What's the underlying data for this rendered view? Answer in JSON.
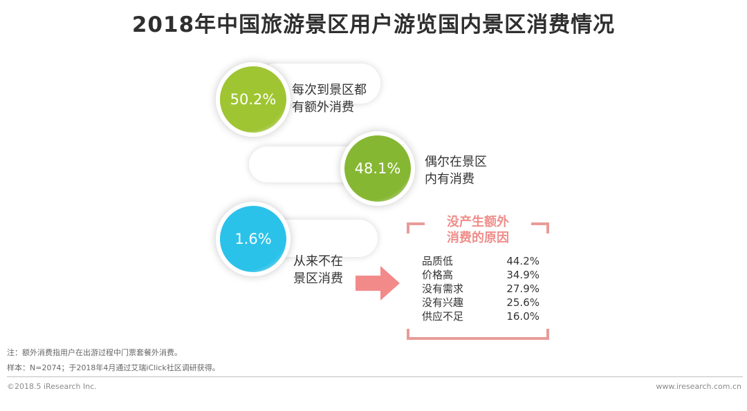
{
  "title": "2018年中国旅游景区用户游览国内景区消费情况",
  "chart_data": {
    "type": "bubble-infographic",
    "series": [
      {
        "value_label": "50.2%",
        "value": 50.2,
        "label_line1": "每次到景区都",
        "label_line2": "有额外消费",
        "color": "#9fc532"
      },
      {
        "value_label": "48.1%",
        "value": 48.1,
        "label_line1": "偶尔在景区",
        "label_line2": "内有消费",
        "color": "#86b733"
      },
      {
        "value_label": "1.6%",
        "value": 1.6,
        "label_line1": "从来不在",
        "label_line2": "景区消费",
        "color": "#2bc2ea"
      }
    ],
    "reasons": {
      "title_line1": "没产生额外",
      "title_line2": "消费的原因",
      "items": [
        {
          "label": "品质低",
          "value_label": "44.2%",
          "value": 44.2
        },
        {
          "label": "价格高",
          "value_label": "34.9%",
          "value": 34.9
        },
        {
          "label": "没有需求",
          "value_label": "27.9%",
          "value": 27.9
        },
        {
          "label": "没有兴趣",
          "value_label": "25.6%",
          "value": 25.6
        },
        {
          "label": "供应不足",
          "value_label": "16.0%",
          "value": 16.0
        }
      ]
    }
  },
  "notes": {
    "note1": "注：额外消费指用户在出游过程中门票套餐外消费。",
    "note2": "样本：N=2074；于2018年4月通过艾瑞iClick社区调研获得。"
  },
  "footer": {
    "left": "©2018.5 iResearch Inc.",
    "right": "www.iresearch.com.cn"
  },
  "colors": {
    "arrow": "#f28a8a",
    "bracket": "#e89c98",
    "reason_title": "#ef8d8a"
  }
}
